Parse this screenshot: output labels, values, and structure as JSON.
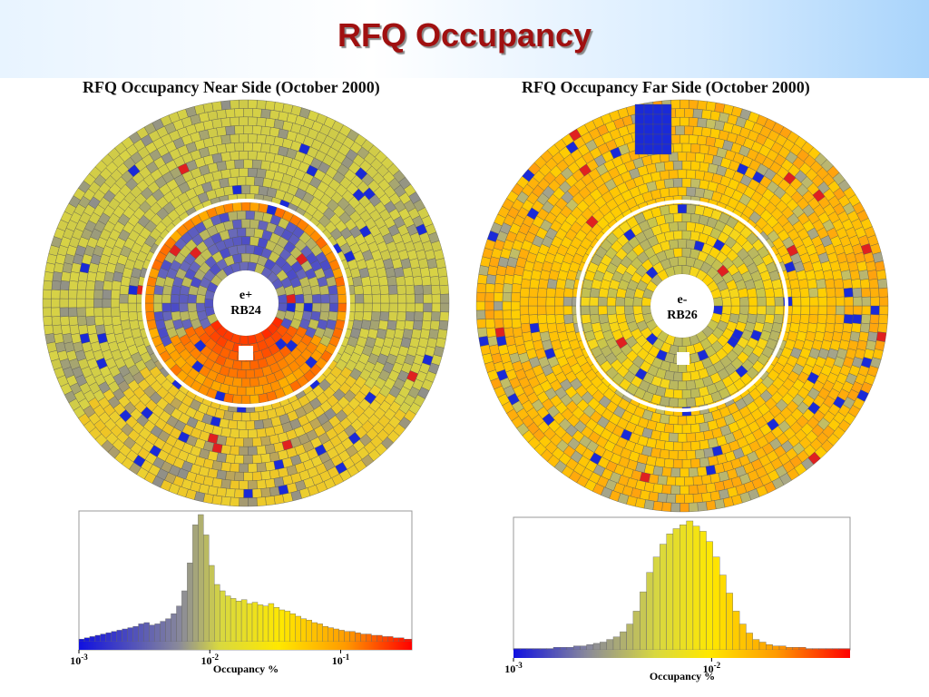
{
  "banner": {
    "title": "RFQ Occupancy"
  },
  "colors": {
    "title": "#a01010",
    "banner_right": "#a9d4fb",
    "ring": "#ffffff"
  },
  "near": {
    "title": "RFQ Occupancy Near Side (October 2000)",
    "center_line1": "e+",
    "center_line2": "RB24"
  },
  "far": {
    "title": "RFQ Occupancy Far Side (October 2000)",
    "center_line1": "e-",
    "center_line2": "RB26"
  },
  "chart_data": [
    {
      "type": "bar",
      "name": "near-histogram",
      "xlabel": "Occupancy %",
      "x_scale": "log",
      "xlim": [
        0.001,
        0.35
      ],
      "tick_labels": [
        "10-3",
        "10-2",
        "10-1"
      ],
      "tick_values": [
        0.001,
        0.01,
        0.1
      ],
      "x": [
        0.001,
        0.0011,
        0.00121,
        0.00133,
        0.00146,
        0.00161,
        0.00177,
        0.00195,
        0.00214,
        0.00236,
        0.00259,
        0.00285,
        0.00314,
        0.00345,
        0.0038,
        0.00418,
        0.00459,
        0.00505,
        0.00556,
        0.00611,
        0.00672,
        0.0074,
        0.00814,
        0.00895,
        0.00984,
        0.01083,
        0.01191,
        0.0131,
        0.01441,
        0.01585,
        0.01744,
        0.01918,
        0.0211,
        0.02321,
        0.02553,
        0.02808,
        0.03089,
        0.03398,
        0.03738,
        0.04112,
        0.04523,
        0.04975,
        0.05473,
        0.0602,
        0.06622,
        0.07284,
        0.08013,
        0.08814,
        0.09696,
        0.10665,
        0.11732,
        0.12905,
        0.14196,
        0.15615,
        0.17177,
        0.18894,
        0.20784,
        0.22862,
        0.25149,
        0.27664,
        0.3043
      ],
      "values": [
        2,
        3,
        4,
        5,
        6,
        7,
        8,
        9,
        10,
        11,
        12,
        14,
        15,
        13,
        14,
        16,
        18,
        22,
        28,
        40,
        62,
        92,
        100,
        84,
        60,
        45,
        40,
        36,
        34,
        32,
        33,
        30,
        31,
        29,
        28,
        30,
        27,
        25,
        24,
        22,
        20,
        18,
        17,
        15,
        14,
        12,
        11,
        10,
        9,
        8,
        8,
        7,
        6,
        6,
        5,
        5,
        4,
        4,
        3,
        3,
        2
      ],
      "ylim": [
        0,
        100
      ]
    },
    {
      "type": "bar",
      "name": "far-histogram",
      "xlabel": "Occupancy %",
      "x_scale": "log",
      "xlim": [
        0.001,
        0.05
      ],
      "tick_labels": [
        "10-3",
        "10-2"
      ],
      "tick_values": [
        0.001,
        0.01
      ],
      "x": [
        0.001,
        0.00108,
        0.00117,
        0.00126,
        0.00136,
        0.00147,
        0.00159,
        0.00172,
        0.00186,
        0.00201,
        0.00217,
        0.00234,
        0.00253,
        0.00273,
        0.00295,
        0.00319,
        0.00345,
        0.00372,
        0.00402,
        0.00435,
        0.00469,
        0.00507,
        0.00548,
        0.00592,
        0.00639,
        0.0069,
        0.00746,
        0.00806,
        0.0087,
        0.0094,
        0.01015,
        0.01097,
        0.01185,
        0.0128,
        0.01382,
        0.01493,
        0.01613,
        0.01742,
        0.01882,
        0.02033,
        0.02196,
        0.02372,
        0.02562,
        0.02767,
        0.02989,
        0.03229,
        0.03488,
        0.03767,
        0.04069,
        0.04395
      ],
      "values": [
        1,
        1,
        1,
        1,
        1,
        1,
        2,
        2,
        2,
        3,
        3,
        4,
        5,
        6,
        8,
        10,
        14,
        20,
        30,
        45,
        60,
        72,
        82,
        90,
        94,
        97,
        100,
        96,
        92,
        84,
        72,
        58,
        44,
        30,
        20,
        13,
        8,
        6,
        4,
        3,
        3,
        2,
        2,
        2,
        1,
        1,
        1,
        1,
        1,
        1
      ],
      "ylim": [
        0,
        100
      ]
    }
  ]
}
